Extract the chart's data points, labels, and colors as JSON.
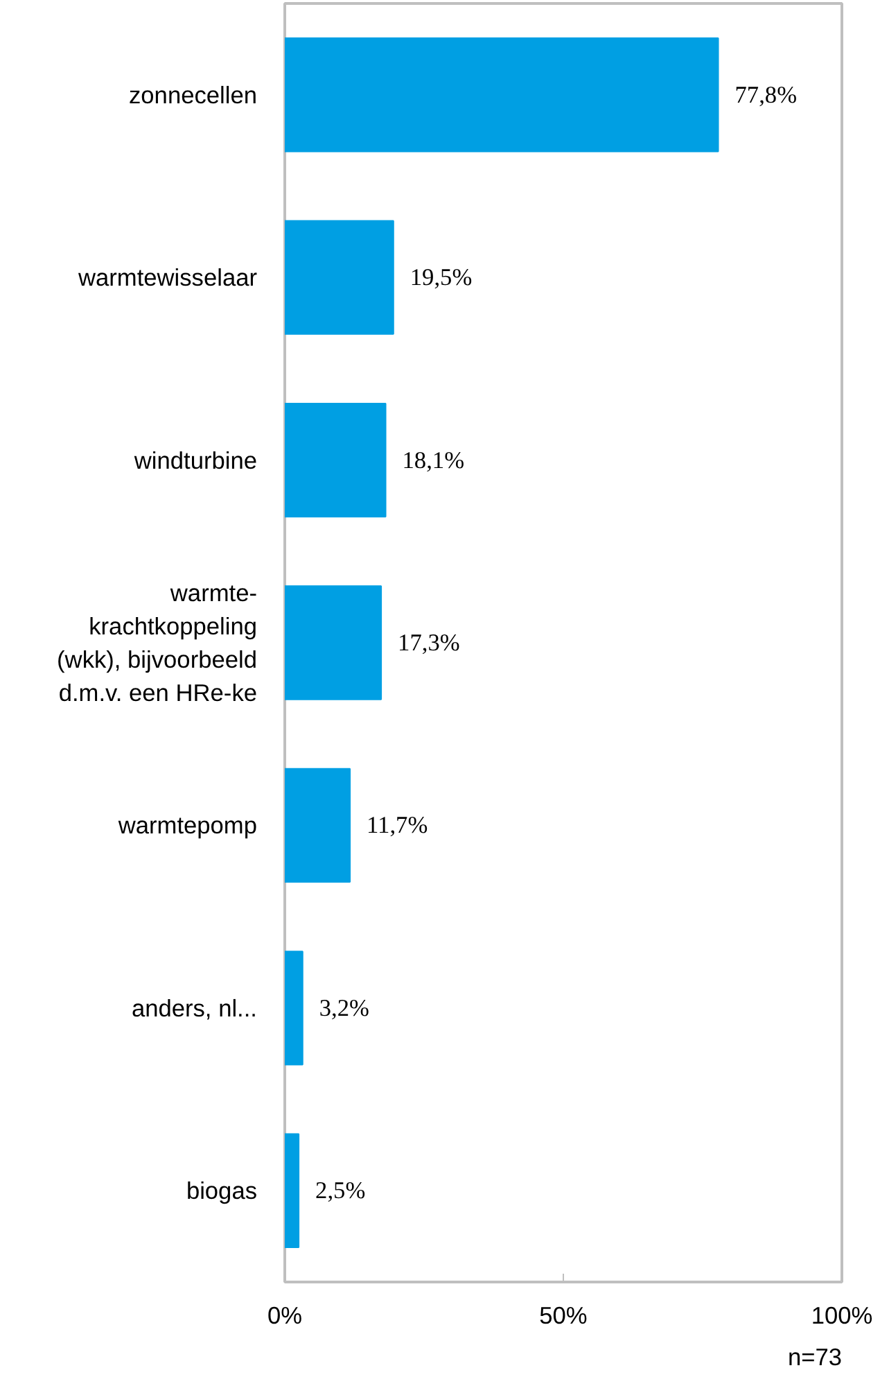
{
  "chart_data": {
    "type": "bar",
    "orientation": "horizontal",
    "categories": [
      "zonnecellen",
      "warmtewisselaar",
      "windturbine",
      "warmte-\nkrachtkoppeling\n(wkk), bijvoorbeeld\nd.m.v. een HRe-ke",
      "warmtepomp",
      "anders, nl...",
      "biogas"
    ],
    "values": [
      77.8,
      19.5,
      18.1,
      17.3,
      11.7,
      3.2,
      2.5
    ],
    "value_labels": [
      "77,8%",
      "19,5%",
      "18,1%",
      "17,3%",
      "11,7%",
      "3,2%",
      "2,5%"
    ],
    "color": "#009fe3",
    "xlim": [
      0,
      100
    ],
    "xticks": [
      {
        "value": 0,
        "label": "0%"
      },
      {
        "value": 50,
        "label": "50%"
      },
      {
        "value": 100,
        "label": "100%"
      }
    ],
    "grid": false,
    "annotations": [
      "n=73"
    ]
  }
}
